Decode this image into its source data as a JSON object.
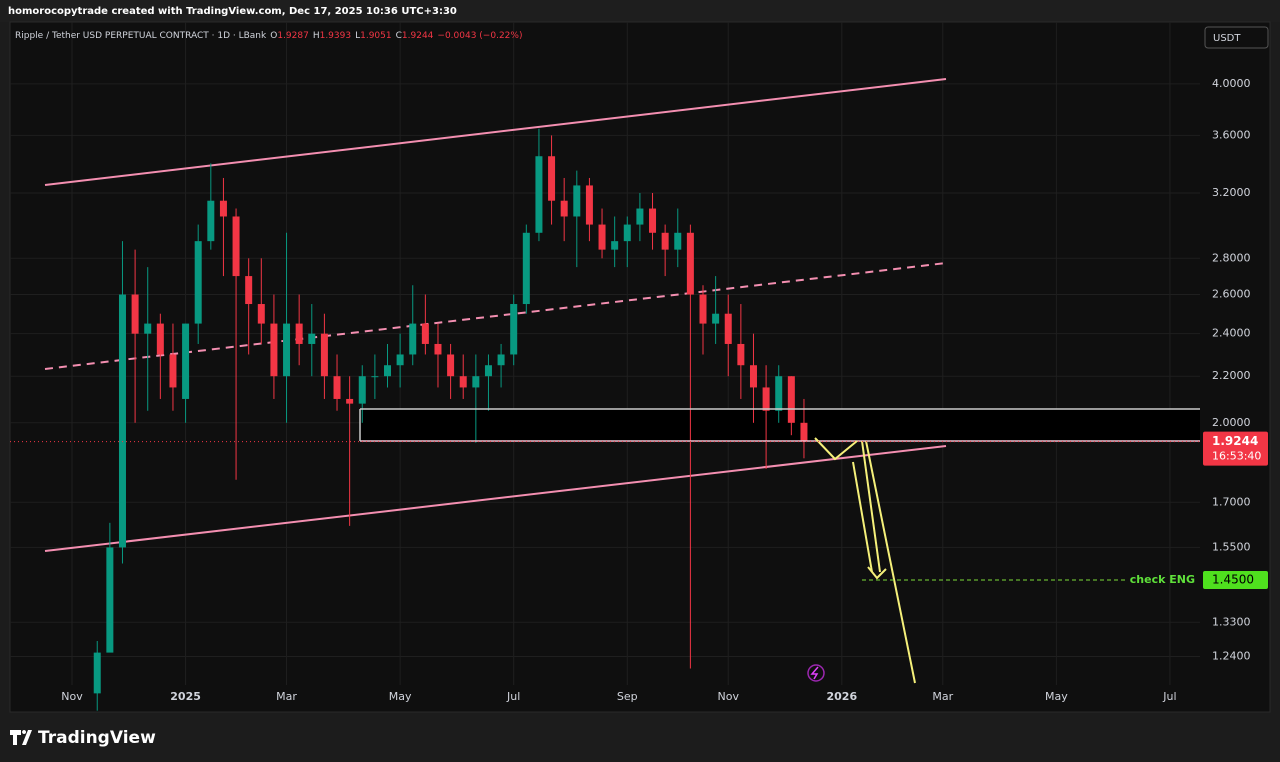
{
  "header": "homorocopytrade created with TradingView.com, Dec 17, 2025 10:36 UTC+3:30",
  "footer": "TradingView",
  "chart_data": {
    "type": "candlestick",
    "title": "Ripple / Tether USD PERPETUAL CONTRACT · 1D · LBank",
    "legend_values": [
      {
        "key": "O",
        "value": "1.9287"
      },
      {
        "key": "H",
        "value": "1.9393"
      },
      {
        "key": "L",
        "value": "1.9051"
      },
      {
        "key": "C",
        "value": "1.9244"
      }
    ],
    "change": "−0.0043 (−0.22%)",
    "currency": "USDT",
    "up_color": "#089981",
    "down_color": "#f23645",
    "log_scale": true,
    "grid": true,
    "ylim": [
      1.107,
      4.54
    ],
    "yticks": [
      {
        "value": 4,
        "label": "4.0000"
      },
      {
        "value": 3.6,
        "label": "3.6000"
      },
      {
        "value": 3.2,
        "label": "3.2000"
      },
      {
        "value": 2.8,
        "label": "2.8000"
      },
      {
        "value": 2.6,
        "label": "2.6000"
      },
      {
        "value": 2.4,
        "label": "2.4000"
      },
      {
        "value": 2.2,
        "label": "2.2000"
      },
      {
        "value": 2,
        "label": "2.0000"
      },
      {
        "value": 1.7,
        "label": "1.7000"
      },
      {
        "value": 1.55,
        "label": "1.5500"
      },
      {
        "value": 1.33,
        "label": "1.3300"
      },
      {
        "value": 1.24,
        "label": "1.2400"
      }
    ],
    "categories": [
      "Nov",
      null,
      null,
      null,
      null,
      null,
      null,
      null,
      null,
      "2025",
      null,
      null,
      null,
      null,
      null,
      null,
      null,
      "Mar",
      null,
      null,
      null,
      null,
      null,
      null,
      null,
      null,
      "May",
      null,
      null,
      null,
      null,
      null,
      null,
      null,
      null,
      "Jul",
      null,
      null,
      null,
      null,
      null,
      null,
      null,
      null,
      "Sep",
      null,
      null,
      null,
      null,
      null,
      null,
      null,
      "Nov",
      null,
      null,
      null,
      null,
      null,
      null,
      null,
      null,
      "2026",
      null,
      null,
      null,
      null,
      null,
      null,
      null,
      "Mar",
      null,
      null,
      null,
      null,
      null,
      null,
      null,
      null,
      "May",
      null,
      null,
      null,
      null,
      null,
      null,
      null,
      null,
      "Jul"
    ],
    "open": [
      null,
      null,
      1.15,
      1.25,
      1.55,
      2.6,
      2.4,
      2.45,
      2.3,
      2.1,
      2.45,
      2.9,
      3.15,
      3.05,
      2.7,
      2.55,
      2.45,
      2.2,
      2.45,
      2.35,
      2.4,
      2.2,
      2.1,
      2.08,
      2.2,
      2.2,
      2.25,
      2.3,
      2.45,
      2.35,
      2.3,
      2.2,
      2.15,
      2.2,
      2.25,
      2.3,
      2.55,
      2.95,
      3.45,
      3.15,
      3.05,
      3.25,
      3.0,
      2.85,
      2.9,
      3.0,
      3.1,
      2.95,
      2.85,
      2.95,
      2.6,
      2.45,
      2.5,
      2.35,
      2.25,
      2.15,
      2.05,
      2.2,
      2.0,
      null,
      null,
      null,
      null,
      null,
      null,
      null,
      null,
      null,
      null,
      null,
      null,
      null,
      null,
      null,
      null,
      null,
      null,
      null,
      null,
      null,
      null,
      null,
      null,
      null,
      null,
      null,
      null,
      null
    ],
    "high": [
      null,
      null,
      1.28,
      1.63,
      2.9,
      2.85,
      2.75,
      2.5,
      2.45,
      2.45,
      3.0,
      3.4,
      3.3,
      3.1,
      2.8,
      2.8,
      2.6,
      2.95,
      2.6,
      2.55,
      2.5,
      2.3,
      2.2,
      2.25,
      2.3,
      2.35,
      2.4,
      2.65,
      2.6,
      2.45,
      2.35,
      2.3,
      2.3,
      2.3,
      2.35,
      2.6,
      3.0,
      3.65,
      3.6,
      3.3,
      3.35,
      3.3,
      3.1,
      3.05,
      3.05,
      3.2,
      3.2,
      3.0,
      3.1,
      3.0,
      2.65,
      2.7,
      2.6,
      2.55,
      2.4,
      2.25,
      2.25,
      2.2,
      2.1,
      null,
      null,
      null,
      null,
      null,
      null,
      null,
      null,
      null,
      null,
      null,
      null,
      null,
      null,
      null,
      null,
      null,
      null,
      null,
      null,
      null,
      null,
      null,
      null,
      null,
      null,
      null,
      null,
      null
    ],
    "low": [
      null,
      null,
      1.11,
      1.28,
      1.5,
      2.0,
      2.05,
      2.1,
      2.05,
      2.0,
      2.35,
      2.85,
      2.7,
      1.78,
      2.3,
      2.35,
      2.1,
      2.0,
      2.25,
      2.2,
      2.1,
      2.05,
      1.62,
      2.0,
      2.1,
      2.15,
      2.15,
      2.25,
      2.3,
      2.15,
      2.1,
      2.1,
      1.92,
      2.05,
      2.15,
      2.25,
      2.5,
      2.9,
      3.0,
      2.9,
      2.75,
      2.9,
      2.8,
      2.75,
      2.75,
      2.9,
      2.85,
      2.7,
      2.75,
      1.21,
      2.3,
      2.35,
      2.2,
      2.1,
      2.0,
      1.82,
      2.0,
      1.95,
      1.86,
      null,
      null,
      null,
      null,
      null,
      null,
      null,
      null,
      null,
      null,
      null,
      null,
      null,
      null,
      null,
      null,
      null,
      null,
      null,
      null,
      null,
      null,
      null,
      null,
      null,
      null,
      null,
      null,
      null
    ],
    "close": [
      null,
      null,
      1.25,
      1.55,
      2.6,
      2.4,
      2.45,
      2.3,
      2.15,
      2.45,
      2.9,
      3.15,
      3.05,
      2.7,
      2.55,
      2.45,
      2.2,
      2.45,
      2.35,
      2.4,
      2.2,
      2.1,
      2.08,
      2.2,
      2.2,
      2.25,
      2.3,
      2.45,
      2.35,
      2.3,
      2.2,
      2.15,
      2.2,
      2.25,
      2.3,
      2.55,
      2.95,
      3.45,
      3.15,
      3.05,
      3.25,
      3.0,
      2.85,
      2.9,
      3.0,
      3.1,
      2.95,
      2.85,
      2.95,
      2.6,
      2.45,
      2.5,
      2.35,
      2.25,
      2.15,
      2.05,
      2.2,
      2.0,
      1.9244,
      null,
      null,
      null,
      null,
      null,
      null,
      null,
      null,
      null,
      null,
      null,
      null,
      null,
      null,
      null,
      null,
      null,
      null,
      null,
      null,
      null,
      null,
      null,
      null,
      null,
      null,
      null,
      null,
      null
    ],
    "last_price": {
      "value": 1.9244,
      "label": "1.9244"
    },
    "countdown": "16:53:40",
    "target": {
      "value": 1.45,
      "label": "1.4500",
      "text": "check ENG"
    }
  }
}
